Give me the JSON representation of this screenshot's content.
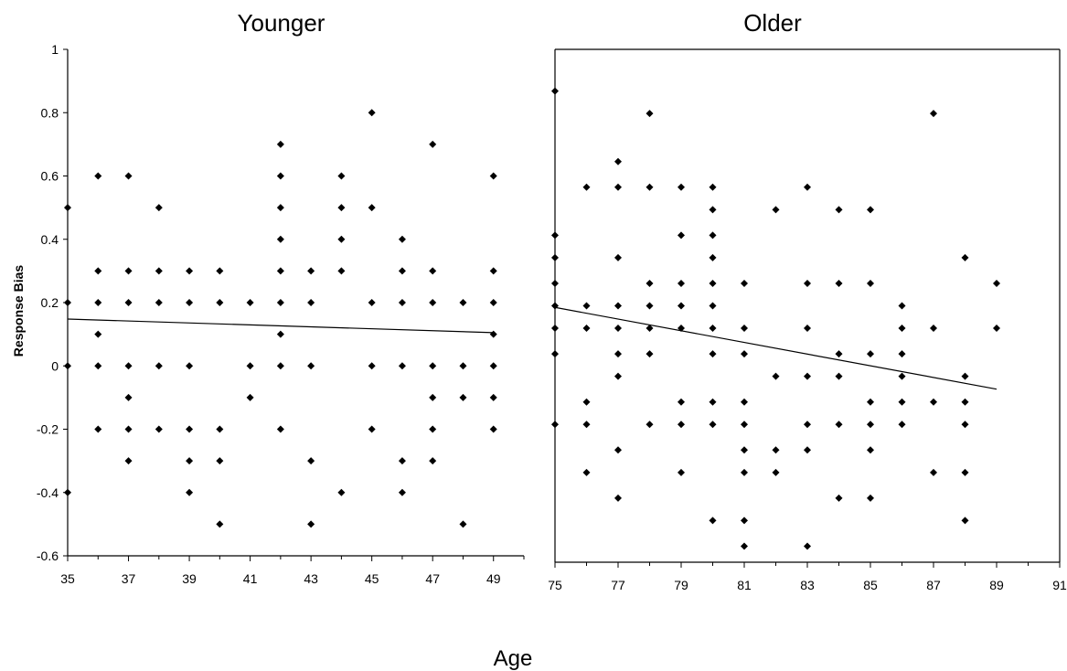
{
  "chart_data": [
    {
      "type": "scatter",
      "title": "Younger",
      "ylabel": "Response Bias",
      "xlim": [
        35,
        50
      ],
      "ylim": [
        -0.6,
        1
      ],
      "x_ticks": [
        "35",
        "37",
        "39",
        "41",
        "43",
        "45",
        "47",
        "49"
      ],
      "y_ticks": [
        "1",
        "0.8",
        "0.6",
        "0.4",
        "0.2",
        "0",
        "-0.2",
        "-0.4",
        "-0.6"
      ],
      "points": [
        {
          "x": 35,
          "y": 0.5
        },
        {
          "x": 35,
          "y": 0.2
        },
        {
          "x": 35,
          "y": 0.0
        },
        {
          "x": 35,
          "y": -0.4
        },
        {
          "x": 36,
          "y": 0.6
        },
        {
          "x": 36,
          "y": 0.3
        },
        {
          "x": 36,
          "y": 0.2
        },
        {
          "x": 36,
          "y": 0.1
        },
        {
          "x": 36,
          "y": 0.0
        },
        {
          "x": 36,
          "y": -0.2
        },
        {
          "x": 37,
          "y": 0.6
        },
        {
          "x": 37,
          "y": 0.3
        },
        {
          "x": 37,
          "y": 0.2
        },
        {
          "x": 37,
          "y": 0.0
        },
        {
          "x": 37,
          "y": -0.1
        },
        {
          "x": 37,
          "y": -0.2
        },
        {
          "x": 37,
          "y": -0.3
        },
        {
          "x": 38,
          "y": 0.5
        },
        {
          "x": 38,
          "y": 0.3
        },
        {
          "x": 38,
          "y": 0.2
        },
        {
          "x": 38,
          "y": 0.0
        },
        {
          "x": 38,
          "y": -0.2
        },
        {
          "x": 39,
          "y": 0.3
        },
        {
          "x": 39,
          "y": 0.2
        },
        {
          "x": 39,
          "y": 0.0
        },
        {
          "x": 39,
          "y": -0.2
        },
        {
          "x": 39,
          "y": -0.3
        },
        {
          "x": 39,
          "y": -0.4
        },
        {
          "x": 40,
          "y": 0.3
        },
        {
          "x": 40,
          "y": 0.2
        },
        {
          "x": 40,
          "y": -0.2
        },
        {
          "x": 40,
          "y": -0.3
        },
        {
          "x": 40,
          "y": -0.5
        },
        {
          "x": 41,
          "y": 0.2
        },
        {
          "x": 41,
          "y": 0.0
        },
        {
          "x": 41,
          "y": -0.1
        },
        {
          "x": 42,
          "y": 0.7
        },
        {
          "x": 42,
          "y": 0.6
        },
        {
          "x": 42,
          "y": 0.5
        },
        {
          "x": 42,
          "y": 0.4
        },
        {
          "x": 42,
          "y": 0.3
        },
        {
          "x": 42,
          "y": 0.2
        },
        {
          "x": 42,
          "y": 0.1
        },
        {
          "x": 42,
          "y": 0.0
        },
        {
          "x": 42,
          "y": -0.2
        },
        {
          "x": 43,
          "y": 0.3
        },
        {
          "x": 43,
          "y": 0.2
        },
        {
          "x": 43,
          "y": 0.0
        },
        {
          "x": 43,
          "y": -0.3
        },
        {
          "x": 43,
          "y": -0.5
        },
        {
          "x": 44,
          "y": 0.6
        },
        {
          "x": 44,
          "y": 0.5
        },
        {
          "x": 44,
          "y": 0.4
        },
        {
          "x": 44,
          "y": 0.3
        },
        {
          "x": 44,
          "y": -0.4
        },
        {
          "x": 45,
          "y": 0.8
        },
        {
          "x": 45,
          "y": 0.5
        },
        {
          "x": 45,
          "y": 0.2
        },
        {
          "x": 45,
          "y": 0.0
        },
        {
          "x": 45,
          "y": -0.2
        },
        {
          "x": 46,
          "y": 0.4
        },
        {
          "x": 46,
          "y": 0.3
        },
        {
          "x": 46,
          "y": 0.2
        },
        {
          "x": 46,
          "y": 0.0
        },
        {
          "x": 46,
          "y": -0.3
        },
        {
          "x": 46,
          "y": -0.4
        },
        {
          "x": 47,
          "y": 0.7
        },
        {
          "x": 47,
          "y": 0.3
        },
        {
          "x": 47,
          "y": 0.2
        },
        {
          "x": 47,
          "y": 0.0
        },
        {
          "x": 47,
          "y": -0.1
        },
        {
          "x": 47,
          "y": -0.2
        },
        {
          "x": 47,
          "y": -0.3
        },
        {
          "x": 48,
          "y": 0.2
        },
        {
          "x": 48,
          "y": 0.0
        },
        {
          "x": 48,
          "y": -0.1
        },
        {
          "x": 48,
          "y": -0.5
        },
        {
          "x": 49,
          "y": 0.6
        },
        {
          "x": 49,
          "y": 0.3
        },
        {
          "x": 49,
          "y": 0.2
        },
        {
          "x": 49,
          "y": 0.1
        },
        {
          "x": 49,
          "y": 0.0
        },
        {
          "x": 49,
          "y": -0.1
        },
        {
          "x": 49,
          "y": -0.2
        }
      ],
      "trendline": {
        "x": [
          35,
          49
        ],
        "y": [
          0.148,
          0.105
        ]
      }
    },
    {
      "type": "scatter",
      "title": "Older",
      "xlim": [
        75,
        91
      ],
      "ylim": [
        -0.6,
        1
      ],
      "x_ticks": [
        "75",
        "77",
        "79",
        "81",
        "83",
        "85",
        "87",
        "89",
        "91"
      ],
      "points": [
        {
          "x": 75,
          "y": 0.87
        },
        {
          "x": 75,
          "y": 0.42
        },
        {
          "x": 75,
          "y": 0.35
        },
        {
          "x": 75,
          "y": 0.27
        },
        {
          "x": 75,
          "y": 0.2
        },
        {
          "x": 75,
          "y": 0.13
        },
        {
          "x": 75,
          "y": 0.05
        },
        {
          "x": 75,
          "y": -0.17
        },
        {
          "x": 76,
          "y": 0.57
        },
        {
          "x": 76,
          "y": 0.2
        },
        {
          "x": 76,
          "y": 0.13
        },
        {
          "x": 76,
          "y": -0.1
        },
        {
          "x": 76,
          "y": -0.17
        },
        {
          "x": 76,
          "y": -0.32
        },
        {
          "x": 77,
          "y": 0.65
        },
        {
          "x": 77,
          "y": 0.57
        },
        {
          "x": 77,
          "y": 0.35
        },
        {
          "x": 77,
          "y": 0.2
        },
        {
          "x": 77,
          "y": 0.13
        },
        {
          "x": 77,
          "y": 0.05
        },
        {
          "x": 77,
          "y": -0.02
        },
        {
          "x": 77,
          "y": -0.25
        },
        {
          "x": 77,
          "y": -0.4
        },
        {
          "x": 78,
          "y": 0.8
        },
        {
          "x": 78,
          "y": 0.57
        },
        {
          "x": 78,
          "y": 0.27
        },
        {
          "x": 78,
          "y": 0.2
        },
        {
          "x": 78,
          "y": 0.13
        },
        {
          "x": 78,
          "y": 0.05
        },
        {
          "x": 78,
          "y": -0.17
        },
        {
          "x": 79,
          "y": 0.57
        },
        {
          "x": 79,
          "y": 0.42
        },
        {
          "x": 79,
          "y": 0.27
        },
        {
          "x": 79,
          "y": 0.2
        },
        {
          "x": 79,
          "y": 0.13
        },
        {
          "x": 79,
          "y": -0.1
        },
        {
          "x": 79,
          "y": -0.17
        },
        {
          "x": 79,
          "y": -0.32
        },
        {
          "x": 80,
          "y": 0.57
        },
        {
          "x": 80,
          "y": 0.5
        },
        {
          "x": 80,
          "y": 0.42
        },
        {
          "x": 80,
          "y": 0.35
        },
        {
          "x": 80,
          "y": 0.27
        },
        {
          "x": 80,
          "y": 0.2
        },
        {
          "x": 80,
          "y": 0.13
        },
        {
          "x": 80,
          "y": 0.05
        },
        {
          "x": 80,
          "y": -0.1
        },
        {
          "x": 80,
          "y": -0.17
        },
        {
          "x": 80,
          "y": -0.47
        },
        {
          "x": 81,
          "y": 0.27
        },
        {
          "x": 81,
          "y": 0.13
        },
        {
          "x": 81,
          "y": 0.05
        },
        {
          "x": 81,
          "y": -0.1
        },
        {
          "x": 81,
          "y": -0.17
        },
        {
          "x": 81,
          "y": -0.25
        },
        {
          "x": 81,
          "y": -0.32
        },
        {
          "x": 81,
          "y": -0.47
        },
        {
          "x": 81,
          "y": -0.55
        },
        {
          "x": 82,
          "y": 0.5
        },
        {
          "x": 82,
          "y": -0.02
        },
        {
          "x": 82,
          "y": -0.25
        },
        {
          "x": 82,
          "y": -0.32
        },
        {
          "x": 83,
          "y": 0.57
        },
        {
          "x": 83,
          "y": 0.27
        },
        {
          "x": 83,
          "y": 0.13
        },
        {
          "x": 83,
          "y": -0.02
        },
        {
          "x": 83,
          "y": -0.17
        },
        {
          "x": 83,
          "y": -0.25
        },
        {
          "x": 83,
          "y": -0.55
        },
        {
          "x": 84,
          "y": 0.5
        },
        {
          "x": 84,
          "y": 0.27
        },
        {
          "x": 84,
          "y": 0.05
        },
        {
          "x": 84,
          "y": -0.02
        },
        {
          "x": 84,
          "y": -0.17
        },
        {
          "x": 84,
          "y": -0.4
        },
        {
          "x": 85,
          "y": 0.5
        },
        {
          "x": 85,
          "y": 0.27
        },
        {
          "x": 85,
          "y": 0.05
        },
        {
          "x": 85,
          "y": -0.1
        },
        {
          "x": 85,
          "y": -0.17
        },
        {
          "x": 85,
          "y": -0.25
        },
        {
          "x": 85,
          "y": -0.4
        },
        {
          "x": 86,
          "y": 0.2
        },
        {
          "x": 86,
          "y": 0.13
        },
        {
          "x": 86,
          "y": 0.05
        },
        {
          "x": 86,
          "y": -0.02
        },
        {
          "x": 86,
          "y": -0.1
        },
        {
          "x": 86,
          "y": -0.17
        },
        {
          "x": 87,
          "y": 0.8
        },
        {
          "x": 87,
          "y": 0.13
        },
        {
          "x": 87,
          "y": -0.1
        },
        {
          "x": 87,
          "y": -0.32
        },
        {
          "x": 88,
          "y": 0.35
        },
        {
          "x": 88,
          "y": -0.02
        },
        {
          "x": 88,
          "y": -0.1
        },
        {
          "x": 88,
          "y": -0.17
        },
        {
          "x": 88,
          "y": -0.32
        },
        {
          "x": 88,
          "y": -0.47
        },
        {
          "x": 89,
          "y": 0.27
        },
        {
          "x": 89,
          "y": 0.13
        }
      ],
      "trendline": {
        "x": [
          75,
          89
        ],
        "y": [
          0.195,
          -0.06
        ]
      }
    }
  ],
  "xlabel": "Age"
}
